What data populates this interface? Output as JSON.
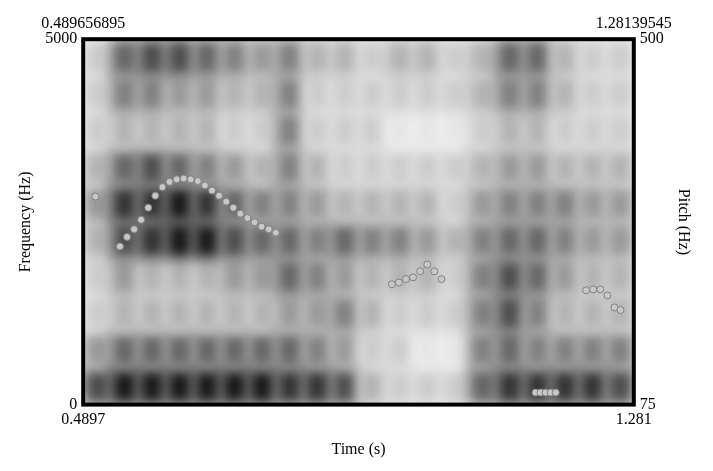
{
  "chart_data": {
    "type": "scatter",
    "x_label": "Time (s)",
    "y_label": "Frequency (Hz)",
    "y2_label": "Pitch (Hz)",
    "xlim": [
      0.489656895,
      1.28139545
    ],
    "xticks": [
      {
        "value": 0.489656895,
        "label": "0.4897"
      },
      {
        "value": 1.28139545,
        "label": "1.281"
      }
    ],
    "x2ticks": [
      0.489656895,
      1.28139545
    ],
    "ylim": [
      0,
      5000
    ],
    "yticks": [
      0,
      5000
    ],
    "y2lim": [
      75,
      500
    ],
    "y2ticks": [
      75,
      500
    ],
    "grid": false,
    "series": [
      {
        "axis": "y2",
        "color": "#c8c8c8",
        "marker": "circle",
        "x": [
          0.5072,
          0.5425,
          0.5527,
          0.5629,
          0.573,
          0.5832,
          0.5934,
          0.6036,
          0.6138,
          0.624,
          0.6342,
          0.6444,
          0.6545,
          0.6647,
          0.6749,
          0.6851,
          0.6953,
          0.7055,
          0.7157,
          0.7258,
          0.736,
          0.7462,
          0.7564,
          0.7666,
          0.9335,
          0.9436,
          0.9538,
          0.964,
          0.9742,
          0.9844,
          0.9946,
          1.0048,
          1.1401,
          1.1473,
          1.1546,
          1.1619,
          1.1692,
          1.2128,
          1.223,
          1.2332,
          1.2434,
          1.2536,
          1.2623
        ],
        "values": [
          317,
          259,
          270,
          279,
          290,
          304,
          318,
          328,
          334,
          337,
          338,
          337,
          335,
          330,
          324,
          318,
          311,
          304,
          297,
          292,
          287,
          282,
          279,
          275,
          215,
          217,
          221,
          223,
          230,
          238,
          230,
          221,
          89,
          89,
          89,
          89,
          89,
          208,
          209,
          209,
          202,
          188,
          185
        ]
      }
    ],
    "spectrogram": {
      "x_edges": [
        0.4897,
        0.5292,
        0.5688,
        0.6084,
        0.648,
        0.6876,
        0.7272,
        0.7668,
        0.8064,
        0.846,
        0.8855,
        0.9251,
        0.9647,
        1.0043,
        1.0439,
        1.0835,
        1.1231,
        1.1627,
        1.2022,
        1.2418,
        1.2814
      ],
      "y_edges": [
        0,
        500,
        1000,
        1500,
        2000,
        2500,
        3000,
        3500,
        4000,
        4500,
        5000
      ],
      "intensity": [
        [
          0.7,
          0.4,
          0.2,
          0.2,
          0.3,
          0.4,
          0.3,
          0.2,
          0.2,
          0.2
        ],
        [
          0.9,
          0.6,
          0.3,
          0.4,
          0.7,
          0.8,
          0.6,
          0.3,
          0.5,
          0.6
        ],
        [
          0.9,
          0.6,
          0.3,
          0.3,
          0.8,
          0.8,
          0.7,
          0.3,
          0.5,
          0.7
        ],
        [
          0.9,
          0.6,
          0.3,
          0.3,
          0.9,
          0.9,
          0.6,
          0.3,
          0.4,
          0.7
        ],
        [
          0.9,
          0.6,
          0.3,
          0.3,
          0.9,
          0.8,
          0.5,
          0.3,
          0.4,
          0.6
        ],
        [
          0.9,
          0.6,
          0.3,
          0.4,
          0.7,
          0.6,
          0.4,
          0.2,
          0.3,
          0.5
        ],
        [
          0.9,
          0.6,
          0.3,
          0.4,
          0.6,
          0.5,
          0.3,
          0.2,
          0.3,
          0.4
        ],
        [
          0.8,
          0.6,
          0.4,
          0.6,
          0.6,
          0.5,
          0.5,
          0.5,
          0.5,
          0.5
        ],
        [
          0.8,
          0.5,
          0.4,
          0.5,
          0.5,
          0.4,
          0.3,
          0.2,
          0.2,
          0.3
        ],
        [
          0.7,
          0.4,
          0.5,
          0.4,
          0.6,
          0.3,
          0.2,
          0.2,
          0.2,
          0.3
        ],
        [
          0.3,
          0.2,
          0.3,
          0.3,
          0.5,
          0.3,
          0.2,
          0.2,
          0.2,
          0.2
        ],
        [
          0.2,
          0.2,
          0.2,
          0.3,
          0.5,
          0.3,
          0.2,
          0.1,
          0.2,
          0.3
        ],
        [
          0.2,
          0.1,
          0.2,
          0.3,
          0.4,
          0.3,
          0.2,
          0.1,
          0.2,
          0.3
        ],
        [
          0.2,
          0.1,
          0.2,
          0.2,
          0.3,
          0.2,
          0.2,
          0.1,
          0.2,
          0.2
        ],
        [
          0.6,
          0.5,
          0.5,
          0.5,
          0.5,
          0.4,
          0.3,
          0.2,
          0.3,
          0.3
        ],
        [
          0.8,
          0.6,
          0.7,
          0.7,
          0.6,
          0.5,
          0.4,
          0.3,
          0.5,
          0.6
        ],
        [
          0.8,
          0.5,
          0.5,
          0.6,
          0.6,
          0.5,
          0.4,
          0.3,
          0.5,
          0.6
        ],
        [
          0.8,
          0.5,
          0.3,
          0.4,
          0.5,
          0.5,
          0.3,
          0.2,
          0.3,
          0.3
        ],
        [
          0.8,
          0.5,
          0.3,
          0.3,
          0.4,
          0.4,
          0.3,
          0.2,
          0.2,
          0.2
        ],
        [
          0.7,
          0.5,
          0.3,
          0.3,
          0.4,
          0.4,
          0.3,
          0.2,
          0.2,
          0.2
        ]
      ]
    }
  }
}
